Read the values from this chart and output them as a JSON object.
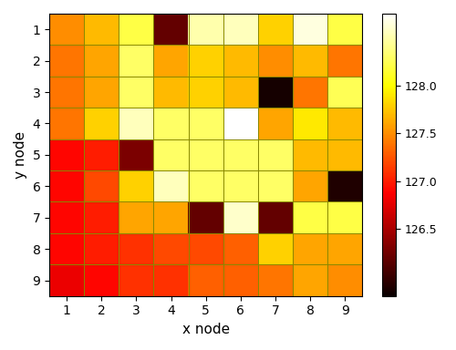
{
  "xlabel": "x node",
  "ylabel": "y node",
  "vmin": 125.8,
  "vmax": 128.75,
  "colorbar_ticks": [
    126.5,
    127.0,
    127.5,
    128.0
  ],
  "grid_data": [
    [
      127.5,
      127.7,
      128.2,
      126.2,
      128.5,
      128.55,
      127.8,
      128.65,
      128.2
    ],
    [
      127.4,
      127.6,
      128.3,
      127.6,
      127.8,
      127.7,
      127.5,
      127.7,
      127.4
    ],
    [
      127.4,
      127.6,
      128.3,
      127.7,
      127.8,
      127.7,
      125.85,
      127.4,
      128.25
    ],
    [
      127.4,
      127.8,
      128.55,
      128.3,
      128.3,
      128.75,
      127.6,
      127.9,
      127.7
    ],
    [
      126.9,
      127.0,
      126.3,
      128.3,
      128.3,
      128.3,
      128.3,
      127.7,
      127.7
    ],
    [
      126.9,
      127.2,
      127.8,
      128.55,
      128.3,
      128.3,
      128.3,
      127.6,
      125.9
    ],
    [
      126.9,
      127.0,
      127.6,
      127.6,
      126.2,
      128.6,
      126.2,
      128.2,
      128.2
    ],
    [
      126.9,
      127.0,
      127.1,
      127.2,
      127.2,
      127.3,
      127.8,
      127.6,
      127.6
    ],
    [
      126.8,
      126.9,
      127.1,
      127.1,
      127.3,
      127.3,
      127.4,
      127.6,
      127.5
    ]
  ],
  "figsize": [
    5.0,
    3.84
  ],
  "dpi": 100
}
